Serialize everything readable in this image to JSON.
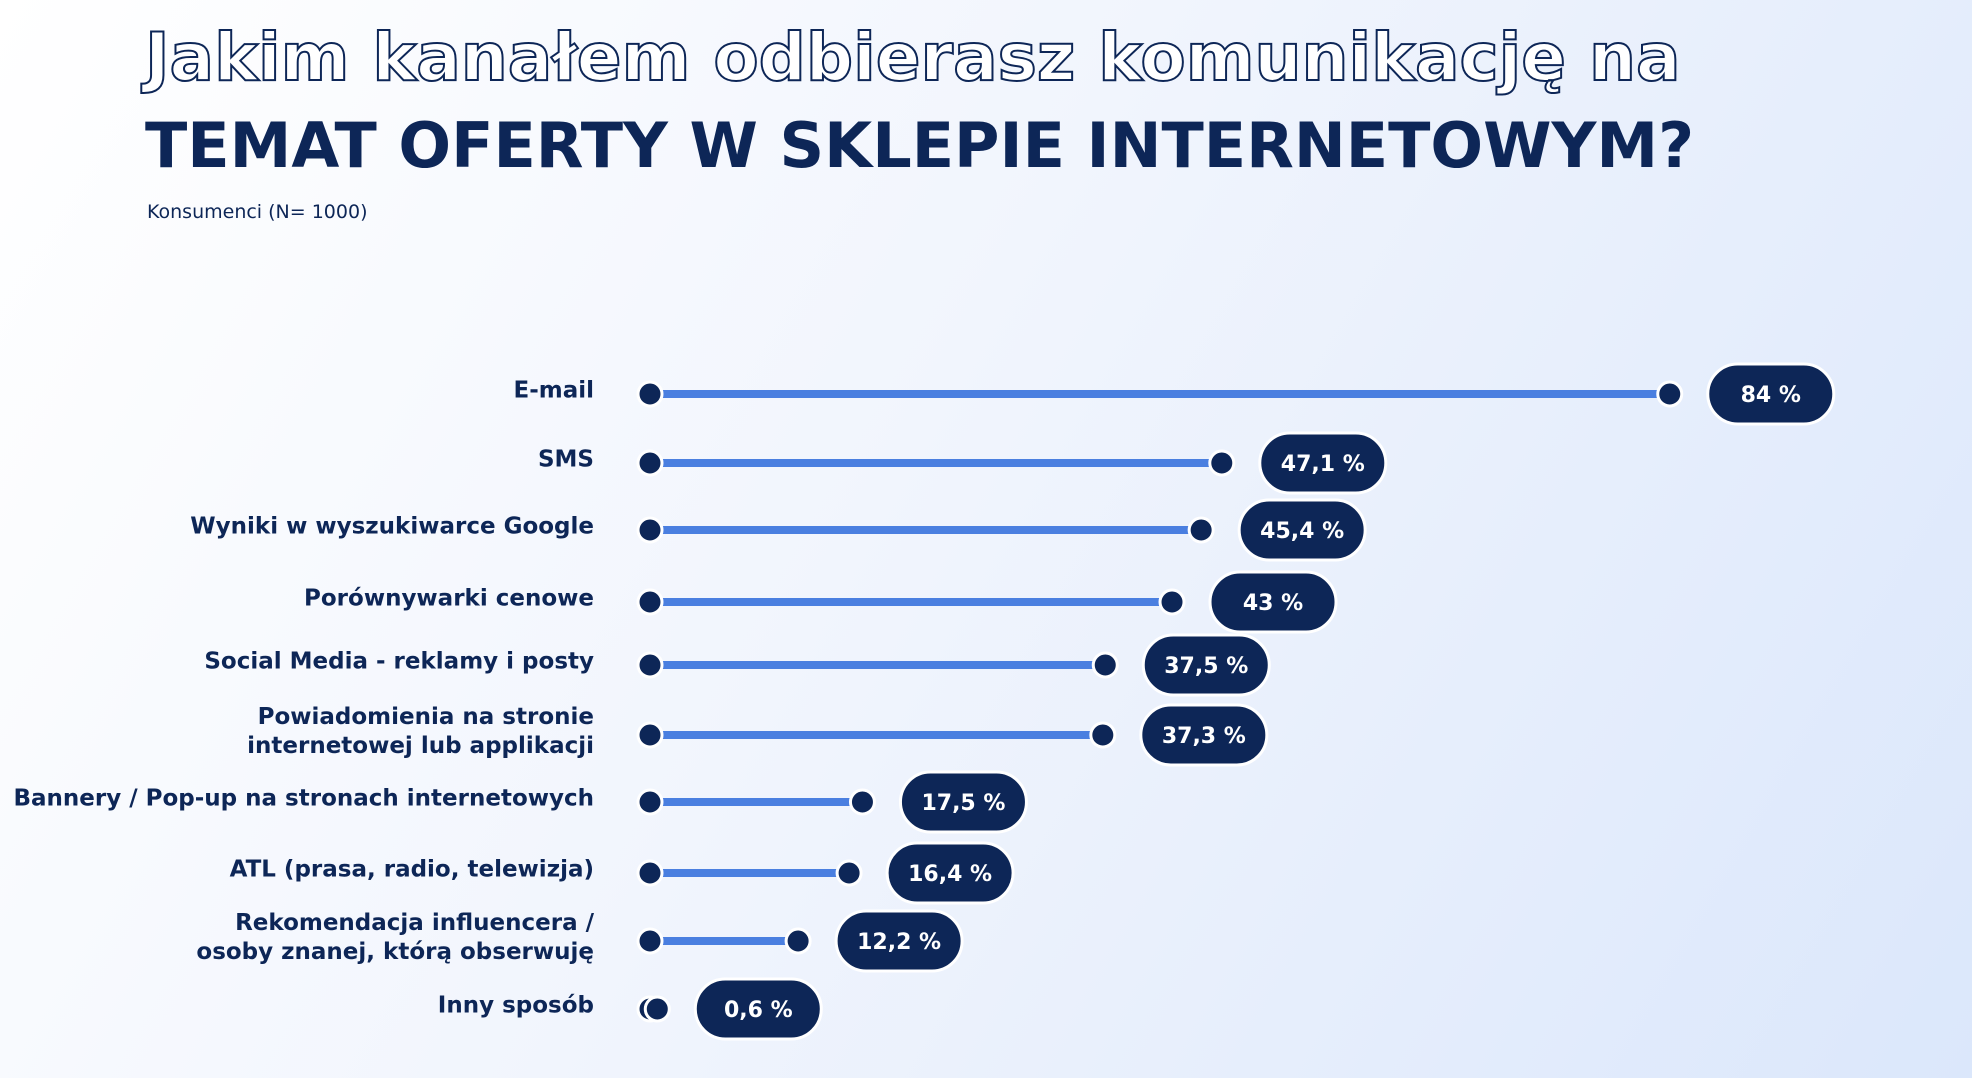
{
  "chart_data": {
    "type": "lollipop",
    "title_lines": [
      "Jakim kanałem odbierasz komunikację na",
      "TEMAT OFERTY W SKLEPIE INTERNETOWYM?"
    ],
    "subtitle": "Konsumenci (N= 1000)",
    "categories": [
      "E-mail",
      "SMS",
      "Wyniki w wyszukiwarce Google",
      "Porównywarki cenowe",
      "Social Media - reklamy i posty",
      "Powiadomienia na stronie\ninternetowej lub applikacji",
      "Bannery / Pop-up na stronach internetowych",
      "ATL (prasa, radio, telewizja)",
      "Rekomendacja influencera /\nosoby znanej, którą obserwuję",
      "Inny sposób"
    ],
    "values": [
      84,
      47.1,
      45.4,
      43,
      37.5,
      37.3,
      17.5,
      16.4,
      12.2,
      0.6
    ],
    "value_labels": [
      "84 %",
      "47,1 %",
      "45,4 %",
      "43 %",
      "37,5 %",
      "37,3 %",
      "17,5 %",
      "16,4 %",
      "12,2 %",
      "0,6 %"
    ],
    "color": "#4a7fe0",
    "marker_color": "#0d2657"
  }
}
